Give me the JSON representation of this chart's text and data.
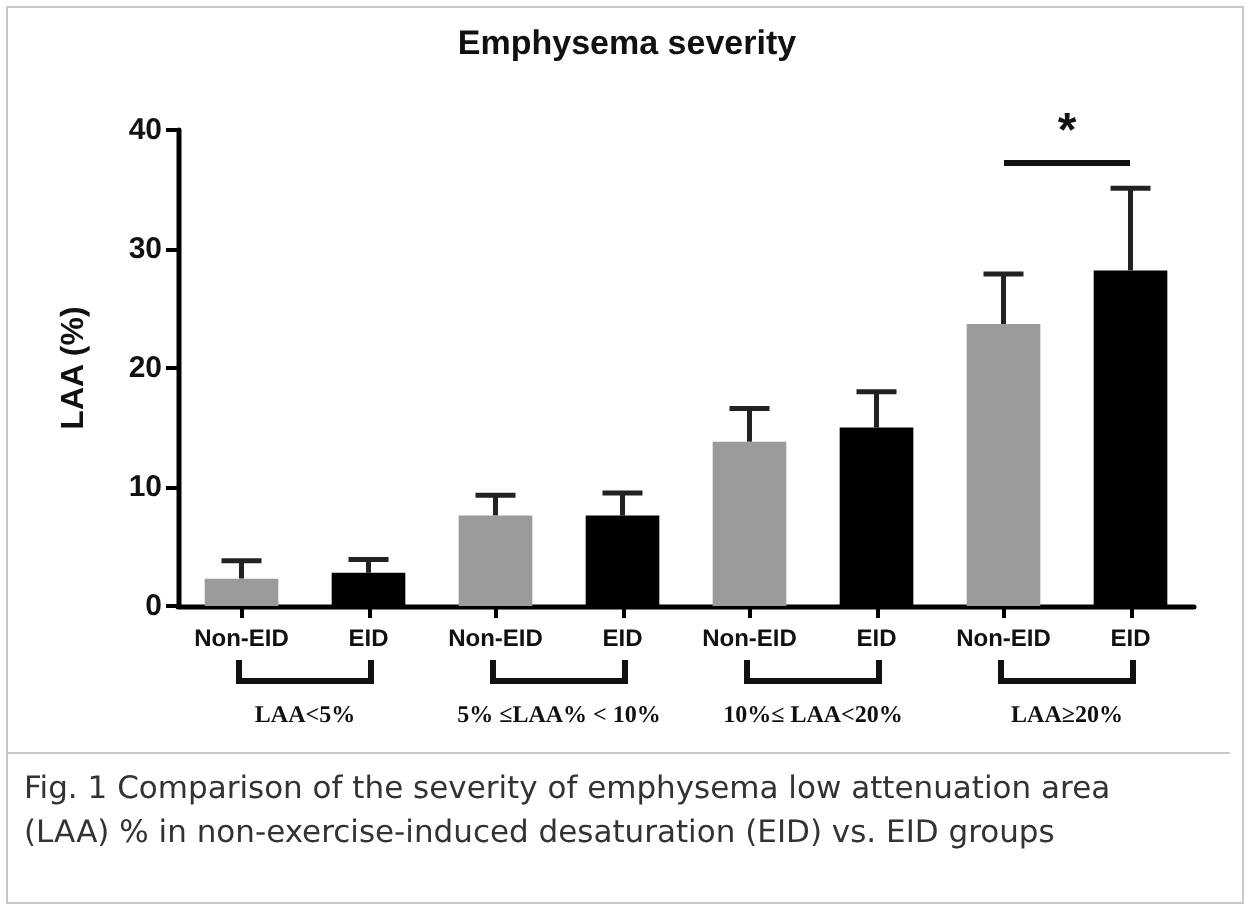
{
  "chart_data": {
    "type": "bar",
    "title": "Emphysema severity",
    "ylabel": "LAA (%)",
    "categories": [
      "Non-EID",
      "EID",
      "Non-EID",
      "EID",
      "Non-EID",
      "EID",
      "Non-EID",
      "EID"
    ],
    "values": [
      2.3,
      2.8,
      7.6,
      7.6,
      13.8,
      15.0,
      23.7,
      28.2
    ],
    "colors": [
      "#9b9b9b",
      "#000000",
      "#9b9b9b",
      "#000000",
      "#9b9b9b",
      "#000000",
      "#9b9b9b",
      "#000000"
    ],
    "errors": [
      [
        2.3,
        3.8
      ],
      [
        2.8,
        3.9
      ],
      [
        7.6,
        9.3
      ],
      [
        7.6,
        9.5
      ],
      [
        13.8,
        16.6
      ],
      [
        15.0,
        18.0
      ],
      [
        23.7,
        27.9
      ],
      [
        28.2,
        35.1
      ]
    ],
    "ylim": [
      0,
      40
    ],
    "yticks": [
      0,
      10,
      20,
      30,
      40
    ],
    "annotations": [
      "LAA<5%",
      "5% ≤LAA% < 10%",
      "10%≤ LAA<20%",
      "LAA≥20%",
      "*",
      "Fig. 1  Comparison of the severity of emphysema low attenuation area (LAA) % in non-exercise-induced desaturation (EID) vs. EID groups"
    ]
  }
}
